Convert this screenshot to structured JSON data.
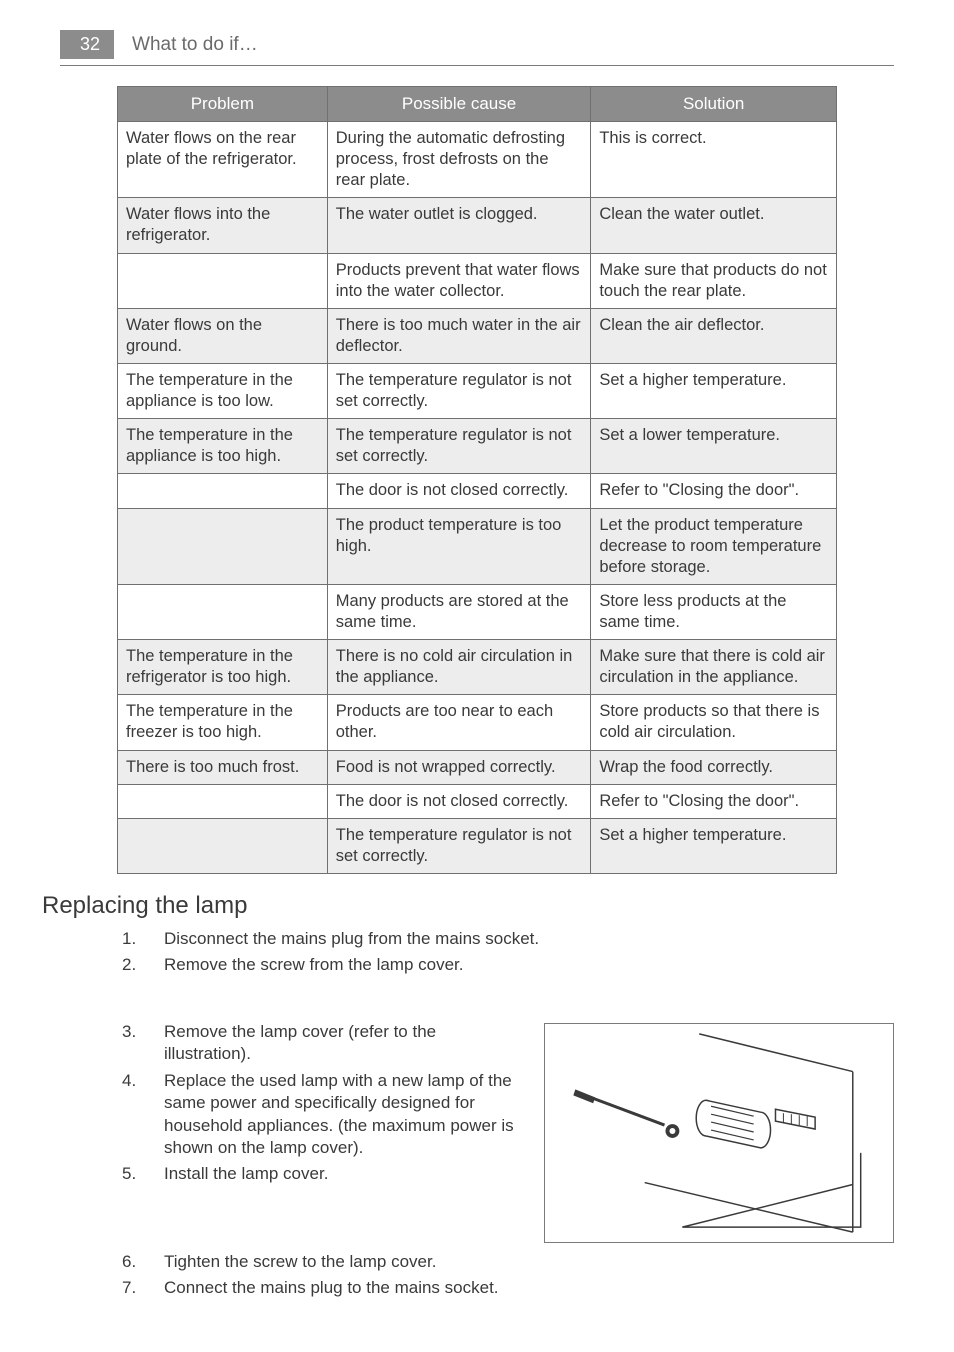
{
  "header": {
    "page_number": "32",
    "title": "What to do if…"
  },
  "table": {
    "columns": [
      "Problem",
      "Possible cause",
      "Solution"
    ],
    "rows": [
      {
        "alt": false,
        "problem": "Water flows on the rear plate of the refrigerator.",
        "cause": "During the automatic defrosting process, frost defrosts on the rear plate.",
        "solution": "This is correct."
      },
      {
        "alt": true,
        "problem": "Water flows into the refrigerator.",
        "cause": "The water outlet is clogged.",
        "solution": "Clean the water outlet."
      },
      {
        "alt": false,
        "problem": " ",
        "cause": "Products prevent that water flows into the water collector.",
        "solution": "Make sure that products do not touch the rear plate."
      },
      {
        "alt": true,
        "problem": "Water flows on the ground.",
        "cause": "There is too much water in the air deflector.",
        "solution": "Clean the air deflector."
      },
      {
        "alt": false,
        "problem": "The temperature in the appliance is too low.",
        "cause": "The temperature regulator is not set correctly.",
        "solution": "Set a higher temperature."
      },
      {
        "alt": true,
        "problem": "The temperature in the appliance is too high.",
        "cause": "The temperature regulator is not set correctly.",
        "solution": "Set a lower temperature."
      },
      {
        "alt": false,
        "problem": " ",
        "cause": "The door is not closed correctly.",
        "solution": "Refer to \"Closing the door\"."
      },
      {
        "alt": true,
        "problem": " ",
        "cause": "The product temperature is too high.",
        "solution": "Let the product temperature decrease to room temperature before storage."
      },
      {
        "alt": false,
        "problem": " ",
        "cause": "Many products are stored at the same time.",
        "solution": "Store less products at the same time."
      },
      {
        "alt": true,
        "problem": "The temperature in the refrigerator is too high.",
        "cause": "There is no cold air circulation in the appliance.",
        "solution": "Make sure that there is cold air circulation in the appliance."
      },
      {
        "alt": false,
        "problem": "The temperature in the freezer is too high.",
        "cause": "Products are too near to each other.",
        "solution": "Store products so that there is cold air circulation."
      },
      {
        "alt": true,
        "problem": "There is too much frost.",
        "cause": "Food is not wrapped correctly.",
        "solution": "Wrap the food correctly."
      },
      {
        "alt": false,
        "problem": " ",
        "cause": "The door is not closed correctly.",
        "solution": "Refer to \"Closing the door\"."
      },
      {
        "alt": true,
        "problem": " ",
        "cause": "The temperature regulator is not set correctly.",
        "solution": "Set a higher temperature."
      }
    ]
  },
  "section": {
    "title": "Replacing the lamp",
    "steps": [
      "Disconnect the mains plug from the mains socket.",
      "Remove the screw from the lamp cover.",
      "Remove the lamp cover (refer to the illustration).",
      "Replace the used lamp with a new lamp of the same power and specifically designed for household appliances. (the maximum power is shown on the lamp cover).",
      "Install the lamp cover.",
      "Tighten the screw to the lamp cover.",
      "Connect the mains plug to the mains socket."
    ]
  },
  "style": {
    "header_bg": "#8c8c8c",
    "alt_bg": "#ededed",
    "text_color": "#3a3a3a"
  }
}
